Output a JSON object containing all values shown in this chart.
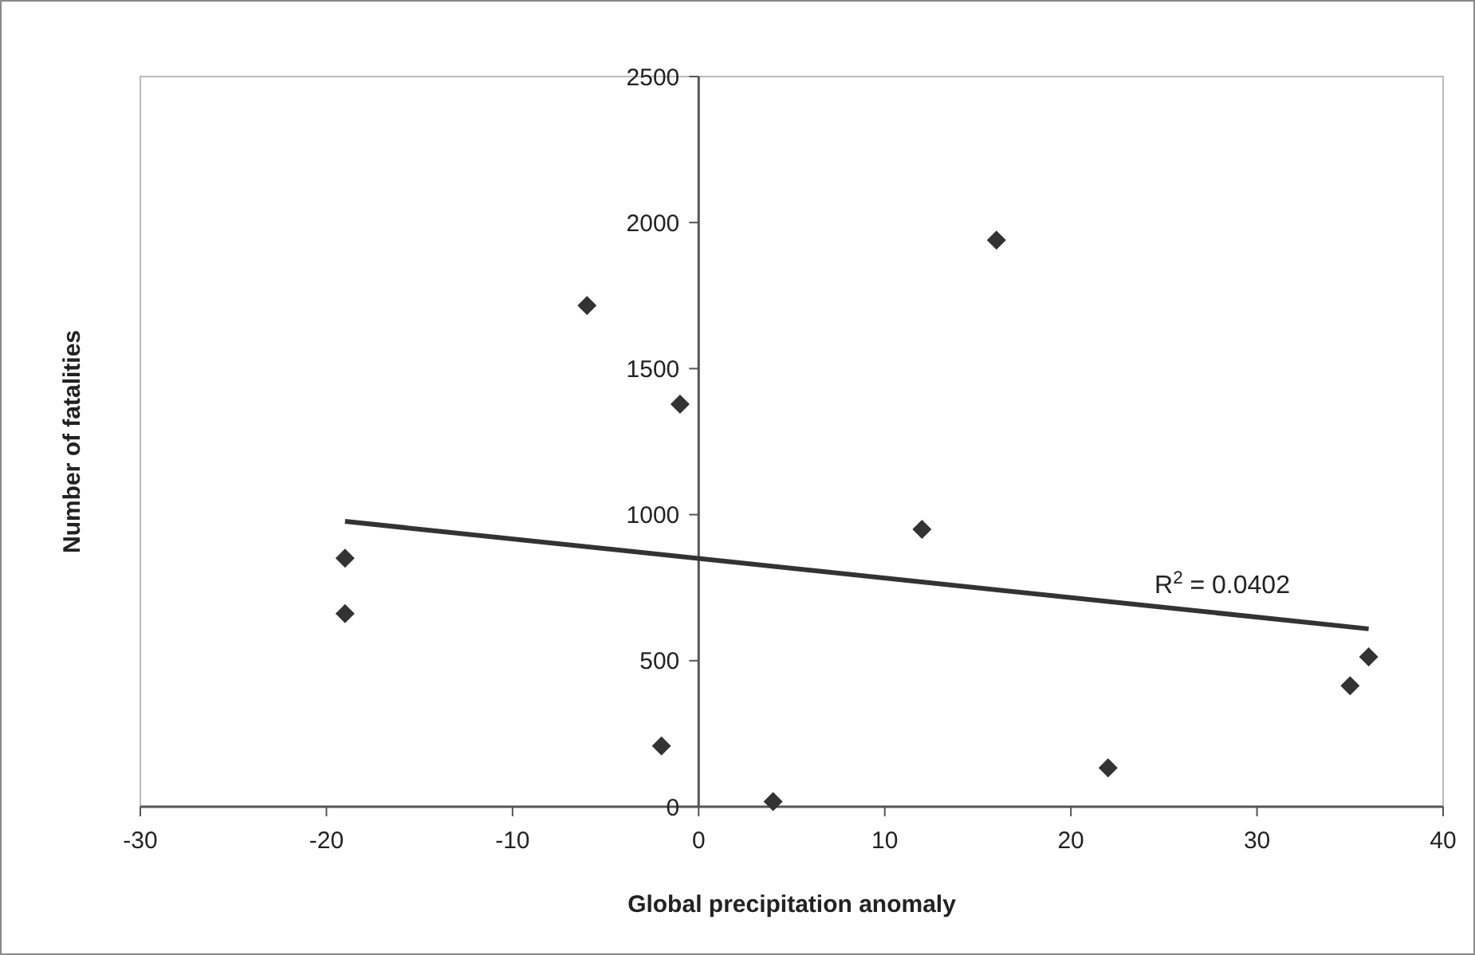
{
  "chart_data": {
    "type": "scatter",
    "xlabel": "Global precipitation anomaly",
    "ylabel": "Number of fatalities",
    "xlim": [
      -30,
      40
    ],
    "xticks": [
      -30,
      -20,
      -10,
      0,
      10,
      20,
      30,
      40
    ],
    "ylim": [
      0,
      2500
    ],
    "yticks": [
      0,
      500,
      1000,
      1500,
      2000,
      2500
    ],
    "grid": false,
    "series": [
      {
        "marker": "diamond",
        "color": "#333333",
        "x": [
          -19,
          -19,
          -6,
          -1,
          -2,
          4,
          12,
          16,
          22,
          35,
          36
        ],
        "values": [
          851,
          661,
          1716,
          1378,
          208,
          18,
          950,
          1940,
          133,
          414,
          513
        ]
      },
      {
        "type": "line",
        "color": "#333333",
        "line_style": "solid",
        "x": [
          -19,
          36
        ],
        "values": [
          977,
          609
        ]
      }
    ],
    "annotations": [
      "R$^{2}$ = 0.0402"
    ]
  }
}
